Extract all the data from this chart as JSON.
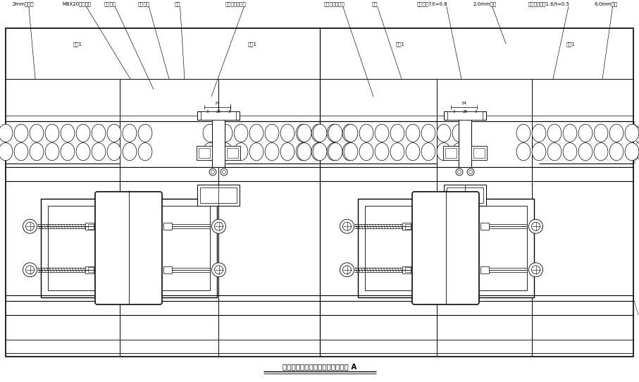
{
  "bg_color": "#ffffff",
  "line_color": "#000000",
  "fig_width": 9.07,
  "fig_height": 5.42,
  "bottom_title": "某铝板幕墙标准纵剖节点构造详图 A",
  "labels_left": [
    [
      "2mm铝单板",
      18,
      533,
      50,
      430
    ],
    [
      "M8X20沉头螺钉",
      88,
      533,
      185,
      430
    ],
    [
      "密封胶条",
      148,
      533,
      218,
      415
    ],
    [
      "密封胶条",
      196,
      533,
      240,
      430
    ],
    [
      "铝扣",
      248,
      533,
      262,
      430
    ],
    [
      "密封胶条耐候胶",
      320,
      533,
      300,
      405
    ]
  ],
  "labels_right": [
    [
      "密封胶条耐候胶",
      460,
      533,
      530,
      405
    ],
    [
      "铝扣",
      528,
      533,
      570,
      430
    ],
    [
      "镀锌钢板7/t=0.8",
      592,
      533,
      655,
      430
    ],
    [
      "2.0mm铝板",
      672,
      533,
      718,
      480
    ],
    [
      "不定期钢板厚1.6/t=0.5",
      750,
      533,
      785,
      430
    ],
    [
      "6.0mm铝板",
      843,
      533,
      855,
      430
    ]
  ],
  "left_sub_label": [
    110,
    476,
    "铝扣1"
  ],
  "right_sub_label": [
    568,
    476,
    "铝扣1"
  ],
  "left_sub2_label": [
    358,
    476,
    "铝扣1"
  ],
  "right_sub2_label": [
    810,
    476,
    "铝扣1"
  ]
}
